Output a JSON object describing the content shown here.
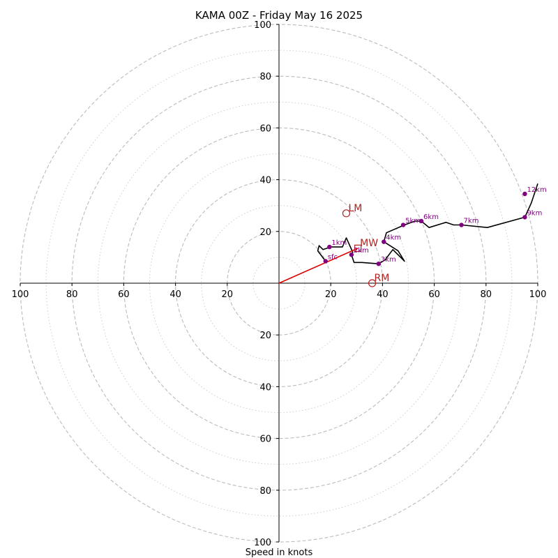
{
  "chart_data": {
    "type": "line",
    "title": "KAMA 00Z - Friday May 16 2025",
    "xlabel": "Speed in knots",
    "ylabel": "",
    "xlim": [
      -100,
      100
    ],
    "ylim": [
      -100,
      100
    ],
    "major_rings": [
      20,
      40,
      60,
      80,
      100
    ],
    "minor_rings": [
      10,
      30,
      50,
      70,
      90
    ],
    "x_ticks": [
      "100",
      "80",
      "60",
      "40",
      "20",
      "20",
      "40",
      "60",
      "80",
      "100"
    ],
    "y_ticks": [
      "100",
      "80",
      "60",
      "40",
      "20",
      "20",
      "40",
      "60",
      "80",
      "100"
    ],
    "x_tick_values": [
      -100,
      -80,
      -60,
      -40,
      -20,
      20,
      40,
      60,
      80,
      100
    ],
    "y_tick_values": [
      100,
      80,
      60,
      40,
      20,
      -20,
      -40,
      -60,
      -80,
      -100
    ],
    "colors": {
      "hodograph": "#000000",
      "height_markers": "#800080",
      "storm_motion": "#b22222",
      "mean_wind_line": "#e00000",
      "grid": "#bbbbbb",
      "axes": "#000000"
    },
    "hodograph": {
      "u": [
        18,
        15,
        15.5,
        17,
        20,
        24.5,
        26,
        28.5,
        28,
        29,
        32,
        38.5,
        41,
        44,
        47,
        48.5,
        46,
        40.5,
        41.5,
        48.5,
        52.5,
        55,
        58,
        64.5,
        67.5,
        70.5,
        80.5,
        95,
        97.5,
        100
      ],
      "v": [
        8.5,
        12.5,
        14.5,
        13,
        14,
        14,
        17.5,
        12,
        11,
        8,
        8,
        7.5,
        9,
        13,
        10,
        8.5,
        12.5,
        16,
        19.5,
        22.5,
        24,
        24,
        21.5,
        23.5,
        22.5,
        22.5,
        21.5,
        25.5,
        31,
        38.5
      ]
    },
    "height_labels": [
      {
        "label": "sfc",
        "u": 18,
        "v": 8.5
      },
      {
        "label": "1km",
        "u": 19.5,
        "v": 14
      },
      {
        "label": "2km",
        "u": 28,
        "v": 11
      },
      {
        "label": "3km",
        "u": 38.5,
        "v": 7.5
      },
      {
        "label": "4km",
        "u": 40.5,
        "v": 16
      },
      {
        "label": "5km",
        "u": 48,
        "v": 22.5
      },
      {
        "label": "6km",
        "u": 55,
        "v": 24
      },
      {
        "label": "7km",
        "u": 70.5,
        "v": 22.5
      },
      {
        "label": "9km",
        "u": 95,
        "v": 25.5
      },
      {
        "label": "12km",
        "u": 95,
        "v": 34.5
      }
    ],
    "storm_motion": [
      {
        "label": "LM",
        "u": 26,
        "v": 27,
        "marker": "circle"
      },
      {
        "label": "MW",
        "u": 30.5,
        "v": 13.5,
        "marker": "square"
      },
      {
        "label": "RM",
        "u": 36,
        "v": 0,
        "marker": "circle"
      }
    ],
    "mean_wind_vector": {
      "u": 30.5,
      "v": 13.5
    },
    "grid": true,
    "legend": "none"
  }
}
